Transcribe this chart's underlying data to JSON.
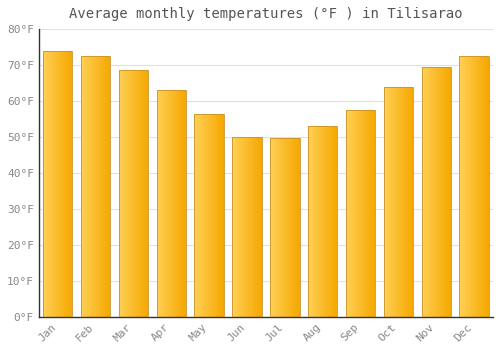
{
  "title": "Average monthly temperatures (°F ) in Tilisarao",
  "months": [
    "Jan",
    "Feb",
    "Mar",
    "Apr",
    "May",
    "Jun",
    "Jul",
    "Aug",
    "Sep",
    "Oct",
    "Nov",
    "Dec"
  ],
  "values": [
    74.0,
    72.5,
    68.5,
    63.0,
    56.5,
    50.0,
    49.8,
    53.0,
    57.5,
    64.0,
    69.5,
    72.5
  ],
  "ylim": [
    0,
    80
  ],
  "yticks": [
    0,
    10,
    20,
    30,
    40,
    50,
    60,
    70,
    80
  ],
  "ytick_labels": [
    "0°F",
    "10°F",
    "20°F",
    "30°F",
    "40°F",
    "50°F",
    "60°F",
    "70°F",
    "80°F"
  ],
  "bar_color_left": "#FFCF55",
  "bar_color_right": "#F5A800",
  "bar_edge_color": "#C8922A",
  "background_color": "#FFFFFF",
  "plot_bg_color": "#FFFFFF",
  "title_fontsize": 10,
  "tick_fontsize": 8,
  "grid_color": "#E0E0E0",
  "axis_label_color": "#888888",
  "title_color": "#555555",
  "bar_width": 0.78
}
